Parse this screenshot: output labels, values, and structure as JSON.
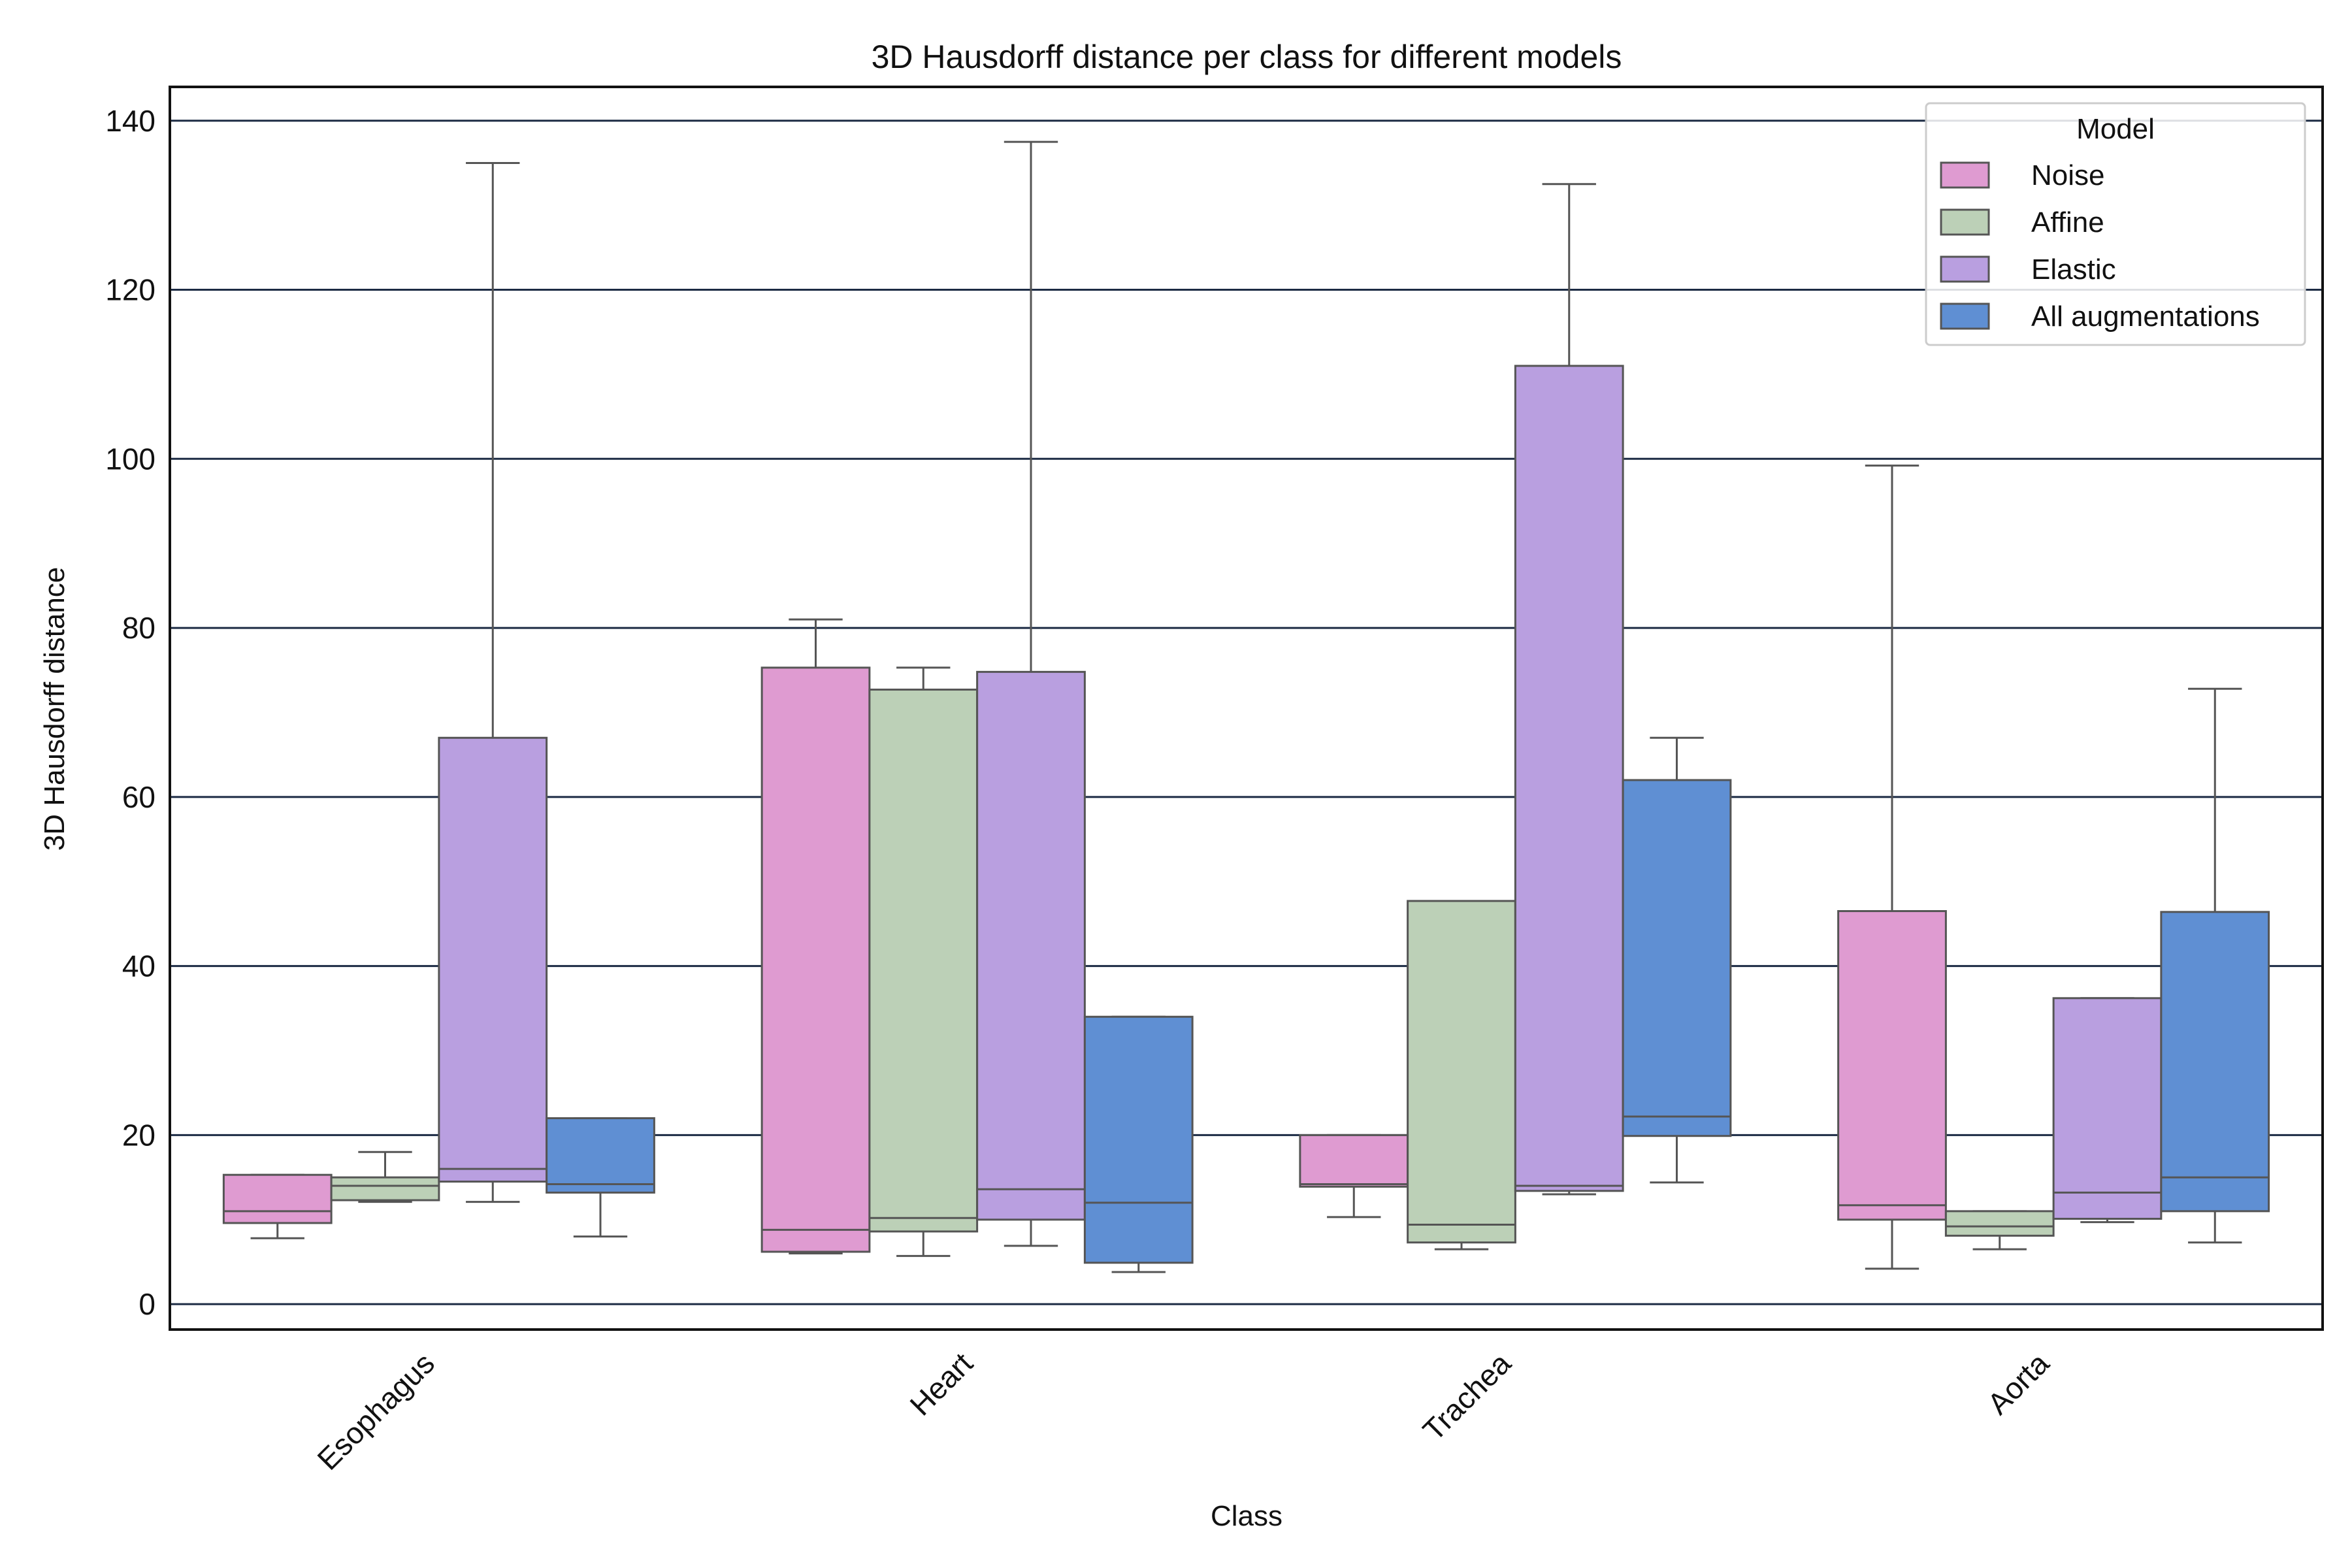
{
  "chart_data": {
    "type": "box",
    "title": "3D Hausdorff distance per class for different models",
    "xlabel": "Class",
    "ylabel": "3D Hausdorff distance",
    "ylim": [
      -3,
      144
    ],
    "yticks": [
      0,
      20,
      40,
      60,
      80,
      100,
      120,
      140
    ],
    "grid": "horizontal",
    "legend": {
      "title": "Model",
      "placement": "top-right"
    },
    "categories": [
      "Esophagus",
      "Heart",
      "Trachea",
      "Aorta"
    ],
    "series": [
      {
        "name": "Noise",
        "color": "#df9bd1",
        "boxes": [
          {
            "whisker_low": 7.8,
            "q1": 9.6,
            "median": 11.0,
            "q3": 15.3,
            "whisker_high": 15.3
          },
          {
            "whisker_low": 6.0,
            "q1": 6.2,
            "median": 8.8,
            "q3": 75.3,
            "whisker_high": 81.0
          },
          {
            "whisker_low": 10.3,
            "q1": 13.9,
            "median": 14.2,
            "q3": 20.0,
            "whisker_high": 20.0
          },
          {
            "whisker_low": 4.2,
            "q1": 10.0,
            "median": 11.7,
            "q3": 46.5,
            "whisker_high": 99.2
          }
        ]
      },
      {
        "name": "Affine",
        "color": "#bcd0b7",
        "boxes": [
          {
            "whisker_low": 12.1,
            "q1": 12.3,
            "median": 14.0,
            "q3": 15.0,
            "whisker_high": 18.0
          },
          {
            "whisker_low": 5.7,
            "q1": 8.6,
            "median": 10.2,
            "q3": 72.7,
            "whisker_high": 75.3
          },
          {
            "whisker_low": 6.5,
            "q1": 7.3,
            "median": 9.4,
            "q3": 47.7,
            "whisker_high": 47.7
          },
          {
            "whisker_low": 6.5,
            "q1": 8.1,
            "median": 9.2,
            "q3": 11.0,
            "whisker_high": 11.0
          }
        ]
      },
      {
        "name": "Elastic",
        "color": "#b99fe0",
        "boxes": [
          {
            "whisker_low": 12.1,
            "q1": 14.5,
            "median": 16.0,
            "q3": 67.0,
            "whisker_high": 135.0
          },
          {
            "whisker_low": 6.9,
            "q1": 10.0,
            "median": 13.6,
            "q3": 74.8,
            "whisker_high": 137.5
          },
          {
            "whisker_low": 13.0,
            "q1": 13.4,
            "median": 14.0,
            "q3": 111.0,
            "whisker_high": 132.5
          },
          {
            "whisker_low": 9.7,
            "q1": 10.1,
            "median": 13.2,
            "q3": 36.2,
            "whisker_high": 36.2
          }
        ]
      },
      {
        "name": "All augmentations",
        "color": "#5f8fd3",
        "boxes": [
          {
            "whisker_low": 8.0,
            "q1": 13.2,
            "median": 14.2,
            "q3": 22.0,
            "whisker_high": 22.0
          },
          {
            "whisker_low": 3.8,
            "q1": 4.9,
            "median": 12.0,
            "q3": 34.0,
            "whisker_high": 34.0
          },
          {
            "whisker_low": 14.4,
            "q1": 19.9,
            "median": 22.2,
            "q3": 62.0,
            "whisker_high": 67.0
          },
          {
            "whisker_low": 7.3,
            "q1": 11.0,
            "median": 15.0,
            "q3": 46.4,
            "whisker_high": 72.8
          }
        ]
      }
    ]
  }
}
